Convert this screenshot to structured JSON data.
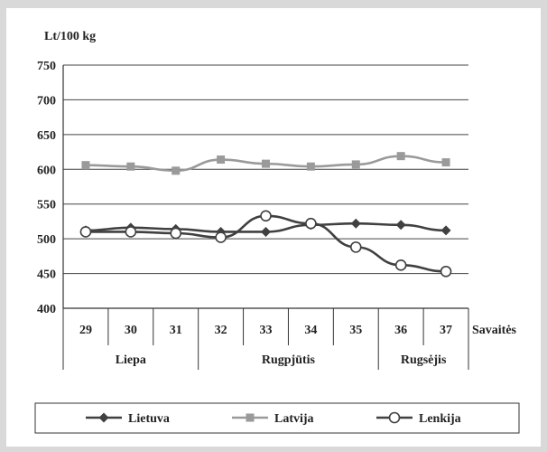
{
  "chart_data": {
    "type": "line",
    "ylabel": "Lt/100 kg",
    "xlabel": "Savaitės",
    "ylim": [
      400,
      750
    ],
    "yticks": [
      400,
      450,
      500,
      550,
      600,
      650,
      700,
      750
    ],
    "categories": [
      "29",
      "30",
      "31",
      "32",
      "33",
      "34",
      "35",
      "36",
      "37"
    ],
    "month_groups": [
      {
        "label": "Liepa",
        "weeks": [
          "29",
          "30",
          "31"
        ]
      },
      {
        "label": "Rugpjūtis",
        "weeks": [
          "32",
          "33",
          "34",
          "35"
        ]
      },
      {
        "label": "Rugsėjis",
        "weeks": [
          "36",
          "37"
        ]
      }
    ],
    "grid": "horizontal",
    "legend_position": "bottom",
    "series": [
      {
        "name": "Lietuva",
        "marker": "diamond",
        "color": "#404040",
        "values": [
          512,
          516,
          514,
          510,
          510,
          520,
          522,
          520,
          512
        ]
      },
      {
        "name": "Latvija",
        "marker": "square",
        "color": "#9a9a9a",
        "values": [
          606,
          604,
          598,
          614,
          608,
          604,
          607,
          619,
          610
        ]
      },
      {
        "name": "Lenkija",
        "marker": "circle",
        "color": "#404040",
        "values": [
          510,
          510,
          508,
          502,
          533,
          522,
          488,
          462,
          453
        ]
      }
    ]
  }
}
